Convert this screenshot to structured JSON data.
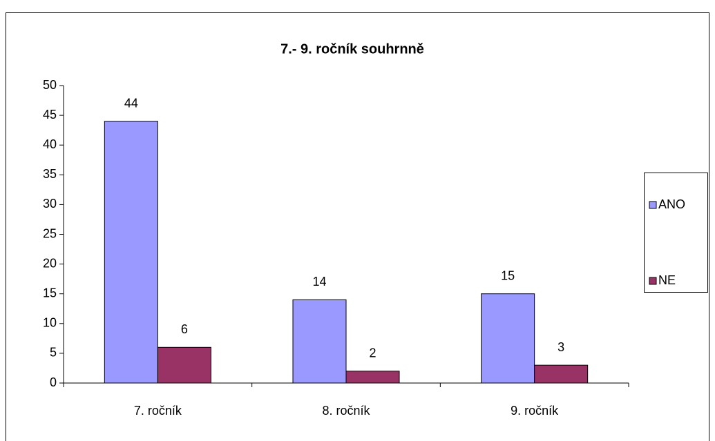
{
  "chart_data": {
    "type": "bar",
    "title": "7.- 9. ročník souhrnně",
    "categories": [
      "7. ročník",
      "8. ročník",
      "9. ročník"
    ],
    "series": [
      {
        "name": "ANO",
        "color": "#9999ff",
        "values": [
          44,
          14,
          15
        ]
      },
      {
        "name": "NE",
        "color": "#993366",
        "values": [
          6,
          2,
          3
        ]
      }
    ],
    "ylim": [
      0,
      50
    ],
    "yticks": [
      0,
      5,
      10,
      15,
      20,
      25,
      30,
      35,
      40,
      45,
      50
    ],
    "grid": false,
    "legend": "right"
  }
}
